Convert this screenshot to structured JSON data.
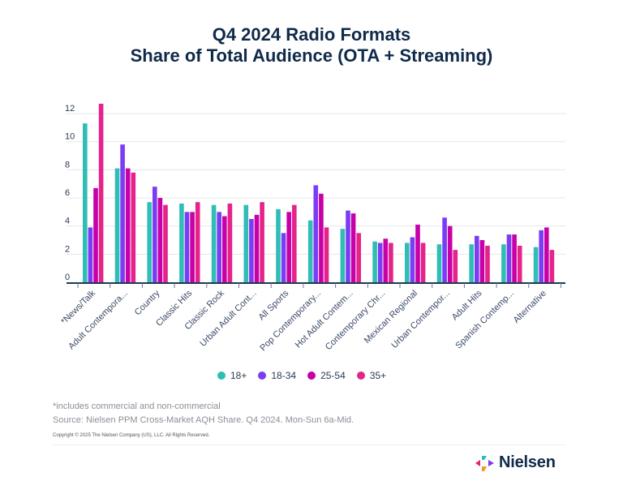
{
  "title_line1": "Q4 2024 Radio Formats",
  "title_line2": "Share of Total Audience (OTA + Streaming)",
  "chart_data": {
    "type": "bar",
    "title": "Q4 2024 Radio Formats Share of Total Audience (OTA + Streaming)",
    "xlabel": "",
    "ylabel": "",
    "ylim": [
      0,
      12
    ],
    "yticks": [
      0,
      2,
      4,
      6,
      8,
      10,
      12
    ],
    "grid": true,
    "legend_position": "bottom",
    "categories": [
      "*News/Talk",
      "Adult Contempora...",
      "Country",
      "Classic Hits",
      "Classic Rock",
      "Urban Adult Cont...",
      "All Sports",
      "Pop Contemporary...",
      "Hot Adult Contem...",
      "Contemporary Chr...",
      "Mexican Regional",
      "Urban Contempor...",
      "Adult Hits",
      "Spanish Contemp...",
      "Alternative"
    ],
    "series": [
      {
        "name": "18+",
        "color": "#2fbdb6",
        "values": [
          11.3,
          8.1,
          5.7,
          5.6,
          5.5,
          5.5,
          5.2,
          4.4,
          3.8,
          2.9,
          2.8,
          2.7,
          2.7,
          2.7,
          2.5
        ]
      },
      {
        "name": "18-34",
        "color": "#7a3cf5",
        "values": [
          3.9,
          9.8,
          6.8,
          5.0,
          5.0,
          4.5,
          3.5,
          6.9,
          5.1,
          2.8,
          3.2,
          4.6,
          3.3,
          3.4,
          3.7
        ]
      },
      {
        "name": "25-54",
        "color": "#c800a8",
        "values": [
          6.7,
          8.1,
          6.0,
          5.0,
          4.7,
          4.8,
          5.0,
          6.3,
          4.9,
          3.1,
          4.1,
          4.0,
          3.0,
          3.4,
          3.9
        ]
      },
      {
        "name": "35+",
        "color": "#e5238a",
        "values": [
          12.7,
          7.8,
          5.5,
          5.7,
          5.6,
          5.7,
          5.5,
          3.9,
          3.5,
          2.8,
          2.8,
          2.3,
          2.6,
          2.6,
          2.3
        ]
      }
    ]
  },
  "legend": [
    {
      "label": "18+",
      "color": "#2fbdb6"
    },
    {
      "label": "18-34",
      "color": "#7a3cf5"
    },
    {
      "label": "25-54",
      "color": "#c800a8"
    },
    {
      "label": "35+",
      "color": "#e5238a"
    }
  ],
  "footnote_1": "*includes commercial and non-commercial",
  "footnote_2": "Source: Nielsen PPM Cross-Market AQH Share. Q4 2024. Mon-Sun 6a-Mid.",
  "copyright": "Copyright © 2025 The Nielsen Company (US), LLC. All Rights Reserved.",
  "logo_text": "Nielsen",
  "logo_colors": [
    "#e5235e",
    "#2fbdb6",
    "#f59a23",
    "#7a3cf5"
  ]
}
